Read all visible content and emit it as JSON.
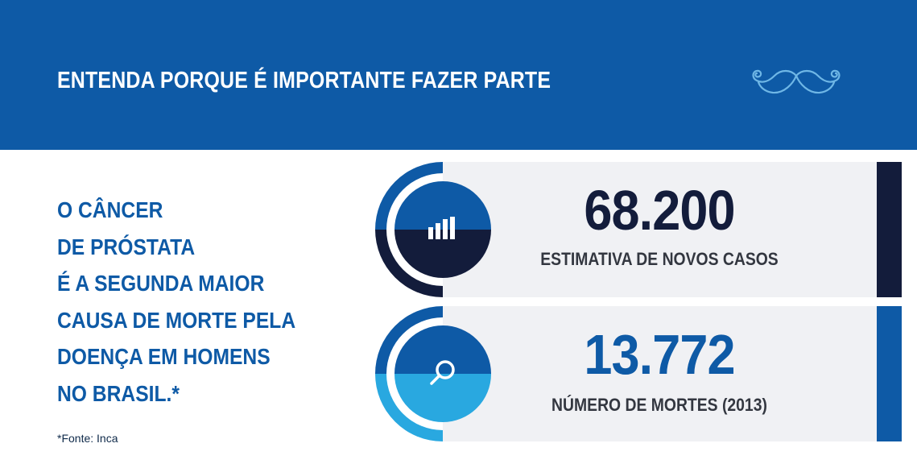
{
  "header": {
    "title": "ENTENDA PORQUE É IMPORTANTE FAZER PARTE",
    "icon": "mustache-icon"
  },
  "statement": {
    "lines": [
      "O CÂNCER",
      "DE PRÓSTATA",
      "É A SEGUNDA MAIOR",
      "CAUSA DE MORTE PELA",
      "DOENÇA EM HOMENS",
      "NO BRASIL.*"
    ]
  },
  "source": "*Fonte: Inca",
  "stats": [
    {
      "value": "68.200",
      "label": "ESTIMATIVA DE NOVOS CASOS",
      "icon": "bar-chart-icon"
    },
    {
      "value": "13.772",
      "label": "NÚMERO DE MORTES (2013)",
      "icon": "magnifier-icon"
    }
  ],
  "colors": {
    "brand_blue": "#0e5aa6",
    "navy": "#131c3b",
    "light_blue": "#29a8e0",
    "card_bg": "#f0f1f4",
    "mustache": "#6fb7e6"
  }
}
